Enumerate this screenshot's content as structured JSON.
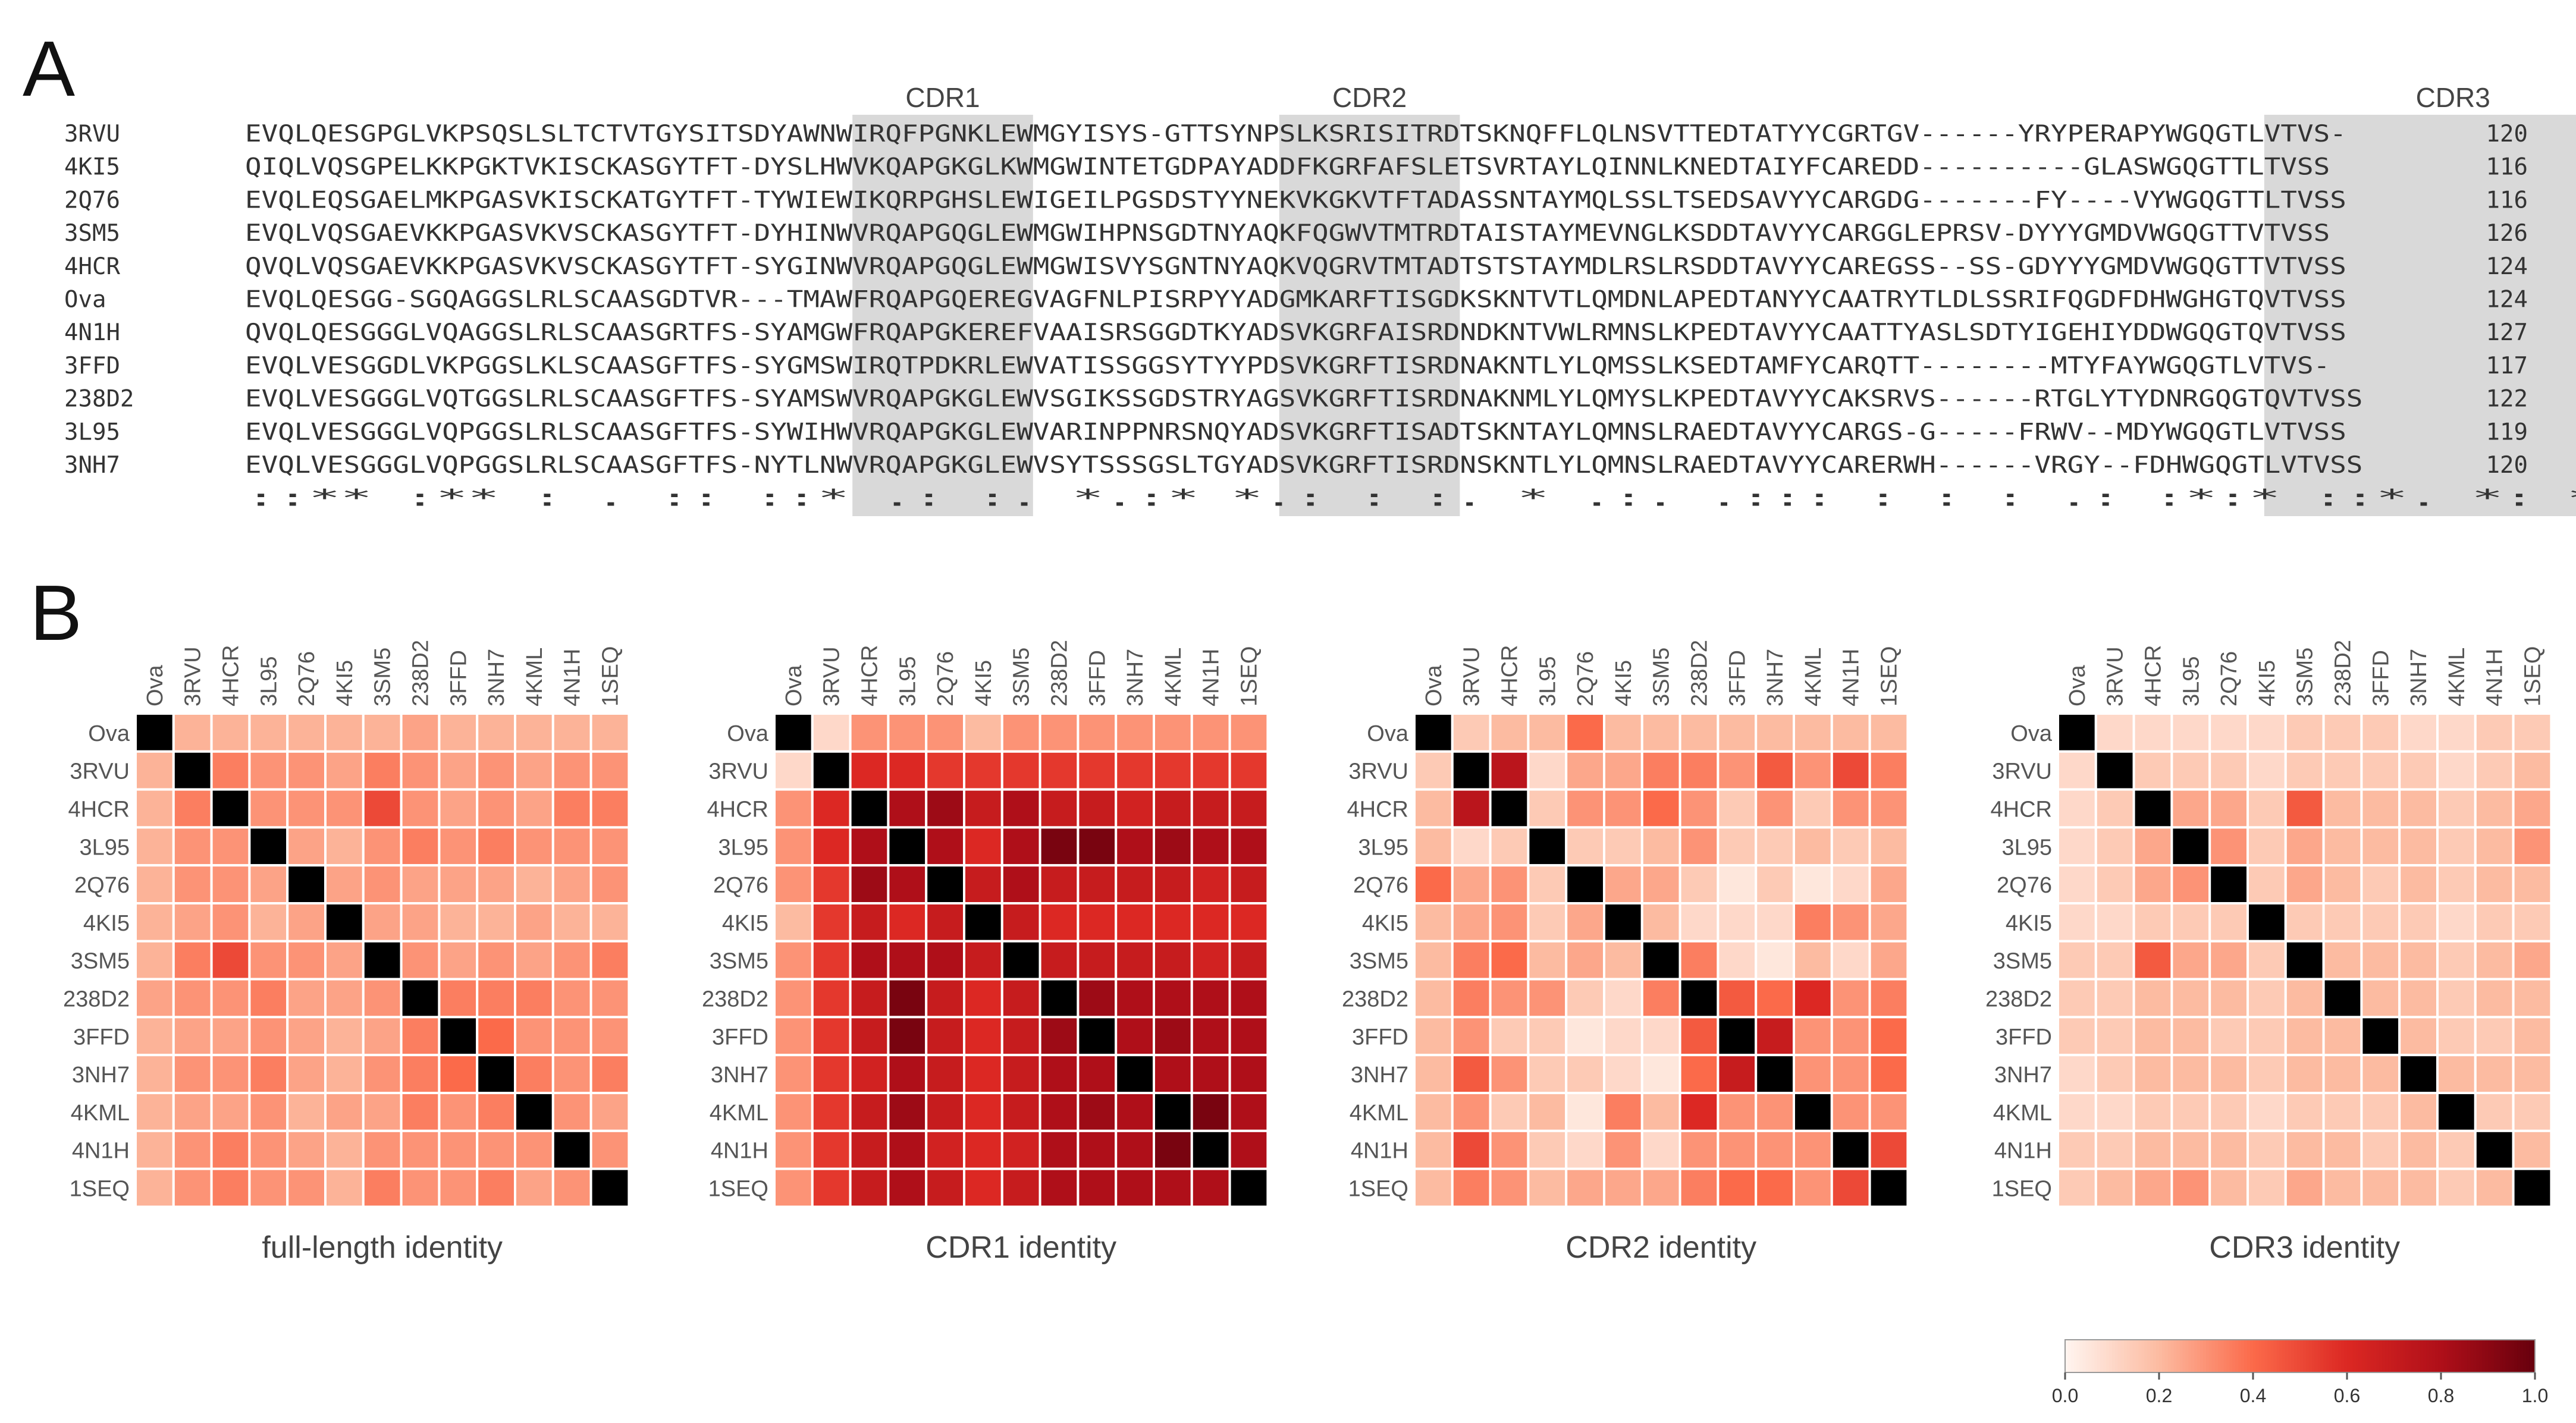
{
  "figure": {
    "panel_a_label": "A",
    "panel_b_label": "B"
  },
  "alignment": {
    "cdr_labels": [
      "CDR1",
      "CDR2",
      "CDR3"
    ],
    "cdr_ranges": [
      [
        37,
        48
      ],
      [
        63,
        74
      ],
      [
        123,
        146
      ]
    ],
    "sequences": [
      {
        "id": "3RVU",
        "seq": "EVQLQESGPGLVKPSQSLSLTCTVTGYSITSDYAWNWIRQFPGNKLEWMGYISYS-GTTSYNPSLKSRISITRDTSKNQFFLQLNSVTTEDTATYYCGRTGV------YRYPERAPYWGQGTLVTVS-",
        "len": "120"
      },
      {
        "id": "4KI5",
        "seq": "QIQLVQSGPELKKPGKTVKISCKASGYTFT-DYSLHWVKQAPGKGLKWMGWINTETGDPAYADDFKGRFAFSLETSVRTAYLQINNLKNEDTAIYFCAREDD----------GLASWGQGTTLTVSS",
        "len": "116"
      },
      {
        "id": "2Q76",
        "seq": "EVQLEQSGAELMKPGASVKISCKATGYTFT-TYWIEWIKQRPGHSLEWIGEILPGSDSTYYNEKVKGKVTFTADASSNTAYMQLSSLTSEDSAVYYCARGDG-------FY----VYWGQGTTLTVSS",
        "len": "116"
      },
      {
        "id": "3SM5",
        "seq": "EVQLVQSGAEVKKPGASVKVSCKASGYTFT-DYHINWVRQAPGQGLEWMGWIHPNSGDTNYAQKFQGWVTMTRDTAISTAYMEVNGLKSDDTAVYYCARGGLEPRSV-DYYYGMDVWGQGTTVTVSS",
        "len": "126"
      },
      {
        "id": "4HCR",
        "seq": "QVQLVQSGAEVKKPGASVKVSCKASGYTFT-SYGINWVRQAPGQGLEWMGWISVYSGNTNYAQKVQGRVTMTADTSTSTAYMDLRSLRSDDTAVYYCAREGSS--SS-GDYYYGMDVWGQGTTVTVSS",
        "len": "124"
      },
      {
        "id": "Ova",
        "seq": "EVQLQESGG-SGQAGGSLRLSCAASGDTVR---TMAWFRQAPGQEREGVAGFNLPISRPYYADGMKARFTISGDKSKNTVTLQMDNLAPEDTANYYCAATRYTLDLSSRIFQGDFDHWGHGTQVTVSS",
        "len": "124"
      },
      {
        "id": "4N1H",
        "seq": "QVQLQESGGGLVQAGGSLRLSCAASGRTFS-SYAMGWFRQAPGKEREFVAAISRSGGDTKYADSVKGRFAISRDNDKNTVWLRMNSLKPEDTAVYYCAATTYASLSDTYIGEHIYDDWGQGTQVTVSS",
        "len": "127"
      },
      {
        "id": "3FFD",
        "seq": "EVQLVESGGDLVKPGGSLKLSCAASGFTFS-SYGMSWIRQTPDKRLEWVATISSGGSYTYYPDSVKGRFTISRDNAKNTLYLQMSSLKSEDTAMFYCARQTT--------MTYFAYWGQGTLVTVS-",
        "len": "117"
      },
      {
        "id": "238D2",
        "seq": "EVQLVESGGGLVQTGGSLRLSCAASGFTFS-SYAMSWVRQAPGKGLEWVSGIKSSGDSTRYAGSVKGRFTISRDNAKNMLYLQMYSLKPEDTAVYYCAKSRVS------RTGLYTYDNRGQGTQVTVSS",
        "len": "122"
      },
      {
        "id": "3L95",
        "seq": "EVQLVESGGGLVQPGGSLRLSCAASGFTFS-SYWIHWVRQAPGKGLEWVARINPPNRSNQYADSVKGRFTISADTSKNTAYLQMNSLRAEDTAVYYCARGS-G-----FRWV--MDYWGQGTLVTVSS",
        "len": "119"
      },
      {
        "id": "3NH7",
        "seq": "EVQLVESGGGLVQPGGSLRLSCAASGFTFS-NYTLNWVRQAPGKGLEWVSYTSSSGSLTGYADSVKGRFTISRDNSKNTLYLQMNSLRAEDTAVYYCARERWH------VRGY--FDHWGQGTLVTVSS",
        "len": "120"
      }
    ],
    "consensus": "::** :**       :  .  :: ::*  .:  :.            *.:*  *.:   :  :.            *    .:.  .::: :        : : .:    :*:*  ::*.                       *:  **  :***"
  },
  "heatmaps": {
    "labels": [
      "Ova",
      "3RVU",
      "4HCR",
      "3L95",
      "2Q76",
      "4KI5",
      "3SM5",
      "238D2",
      "3FFD",
      "3NH7",
      "4KML",
      "4N1H",
      "1SEQ"
    ],
    "panels": [
      {
        "title": "full-length identity",
        "matrix": [
          [
            1.0,
            0.22,
            0.22,
            0.22,
            0.22,
            0.22,
            0.22,
            0.26,
            0.22,
            0.22,
            0.22,
            0.22,
            0.22
          ],
          [
            0.22,
            1.0,
            0.35,
            0.3,
            0.3,
            0.26,
            0.35,
            0.3,
            0.26,
            0.3,
            0.26,
            0.3,
            0.3
          ],
          [
            0.22,
            0.35,
            1.0,
            0.3,
            0.3,
            0.3,
            0.5,
            0.3,
            0.26,
            0.3,
            0.26,
            0.35,
            0.35
          ],
          [
            0.22,
            0.3,
            0.3,
            1.0,
            0.26,
            0.22,
            0.3,
            0.35,
            0.3,
            0.35,
            0.3,
            0.3,
            0.3
          ],
          [
            0.22,
            0.3,
            0.3,
            0.26,
            1.0,
            0.26,
            0.3,
            0.26,
            0.26,
            0.26,
            0.22,
            0.26,
            0.3
          ],
          [
            0.22,
            0.26,
            0.3,
            0.22,
            0.26,
            1.0,
            0.26,
            0.26,
            0.22,
            0.22,
            0.26,
            0.22,
            0.22
          ],
          [
            0.22,
            0.35,
            0.5,
            0.3,
            0.3,
            0.26,
            1.0,
            0.3,
            0.26,
            0.3,
            0.26,
            0.3,
            0.35
          ],
          [
            0.26,
            0.3,
            0.3,
            0.35,
            0.26,
            0.26,
            0.3,
            1.0,
            0.35,
            0.35,
            0.35,
            0.3,
            0.3
          ],
          [
            0.22,
            0.26,
            0.26,
            0.3,
            0.26,
            0.22,
            0.26,
            0.35,
            1.0,
            0.4,
            0.3,
            0.3,
            0.3
          ],
          [
            0.22,
            0.3,
            0.3,
            0.35,
            0.26,
            0.22,
            0.3,
            0.35,
            0.4,
            1.0,
            0.35,
            0.3,
            0.35
          ],
          [
            0.22,
            0.26,
            0.26,
            0.3,
            0.22,
            0.26,
            0.26,
            0.35,
            0.3,
            0.35,
            1.0,
            0.3,
            0.26
          ],
          [
            0.22,
            0.3,
            0.35,
            0.3,
            0.26,
            0.22,
            0.3,
            0.3,
            0.3,
            0.3,
            0.3,
            1.0,
            0.3
          ],
          [
            0.22,
            0.3,
            0.35,
            0.3,
            0.3,
            0.22,
            0.35,
            0.3,
            0.3,
            0.35,
            0.26,
            0.3,
            1.0
          ]
        ]
      },
      {
        "title": "CDR1 identity",
        "matrix": [
          [
            1.0,
            0.1,
            0.3,
            0.3,
            0.3,
            0.2,
            0.3,
            0.3,
            0.3,
            0.3,
            0.3,
            0.3,
            0.3
          ],
          [
            0.1,
            1.0,
            0.6,
            0.6,
            0.55,
            0.55,
            0.55,
            0.55,
            0.55,
            0.55,
            0.55,
            0.55,
            0.55
          ],
          [
            0.3,
            0.6,
            1.0,
            0.8,
            0.85,
            0.7,
            0.8,
            0.7,
            0.7,
            0.65,
            0.7,
            0.7,
            0.7
          ],
          [
            0.3,
            0.6,
            0.8,
            1.0,
            0.8,
            0.6,
            0.8,
            0.95,
            0.95,
            0.8,
            0.85,
            0.8,
            0.8
          ],
          [
            0.3,
            0.55,
            0.85,
            0.8,
            1.0,
            0.7,
            0.8,
            0.7,
            0.7,
            0.7,
            0.7,
            0.65,
            0.7
          ],
          [
            0.2,
            0.55,
            0.7,
            0.6,
            0.7,
            1.0,
            0.7,
            0.6,
            0.6,
            0.6,
            0.6,
            0.6,
            0.6
          ],
          [
            0.3,
            0.55,
            0.8,
            0.8,
            0.8,
            0.7,
            1.0,
            0.7,
            0.7,
            0.7,
            0.7,
            0.65,
            0.7
          ],
          [
            0.3,
            0.55,
            0.7,
            0.95,
            0.7,
            0.6,
            0.7,
            1.0,
            0.85,
            0.8,
            0.8,
            0.8,
            0.8
          ],
          [
            0.3,
            0.55,
            0.7,
            0.95,
            0.7,
            0.6,
            0.7,
            0.85,
            1.0,
            0.8,
            0.85,
            0.8,
            0.8
          ],
          [
            0.3,
            0.55,
            0.65,
            0.8,
            0.7,
            0.6,
            0.7,
            0.8,
            0.8,
            1.0,
            0.8,
            0.8,
            0.8
          ],
          [
            0.3,
            0.55,
            0.7,
            0.85,
            0.7,
            0.6,
            0.7,
            0.8,
            0.85,
            0.8,
            1.0,
            0.95,
            0.8
          ],
          [
            0.3,
            0.55,
            0.7,
            0.8,
            0.65,
            0.6,
            0.65,
            0.8,
            0.8,
            0.8,
            0.95,
            1.0,
            0.8
          ],
          [
            0.3,
            0.55,
            0.7,
            0.8,
            0.7,
            0.6,
            0.7,
            0.8,
            0.8,
            0.8,
            0.8,
            0.8,
            1.0
          ]
        ]
      },
      {
        "title": "CDR2 identity",
        "matrix": [
          [
            1.0,
            0.15,
            0.2,
            0.2,
            0.4,
            0.2,
            0.2,
            0.2,
            0.2,
            0.2,
            0.2,
            0.2,
            0.2
          ],
          [
            0.15,
            1.0,
            0.75,
            0.1,
            0.25,
            0.25,
            0.35,
            0.35,
            0.3,
            0.45,
            0.3,
            0.5,
            0.35
          ],
          [
            0.2,
            0.75,
            1.0,
            0.15,
            0.3,
            0.3,
            0.4,
            0.3,
            0.15,
            0.3,
            0.15,
            0.3,
            0.3
          ],
          [
            0.2,
            0.1,
            0.15,
            1.0,
            0.15,
            0.15,
            0.2,
            0.3,
            0.15,
            0.15,
            0.2,
            0.15,
            0.2
          ],
          [
            0.4,
            0.25,
            0.3,
            0.15,
            1.0,
            0.25,
            0.25,
            0.15,
            0.05,
            0.15,
            0.05,
            0.1,
            0.25
          ],
          [
            0.2,
            0.25,
            0.3,
            0.15,
            0.25,
            1.0,
            0.2,
            0.1,
            0.1,
            0.1,
            0.35,
            0.3,
            0.25
          ],
          [
            0.2,
            0.35,
            0.4,
            0.2,
            0.25,
            0.2,
            1.0,
            0.35,
            0.1,
            0.05,
            0.2,
            0.1,
            0.25
          ],
          [
            0.2,
            0.35,
            0.3,
            0.3,
            0.15,
            0.1,
            0.35,
            1.0,
            0.45,
            0.4,
            0.6,
            0.3,
            0.35
          ],
          [
            0.2,
            0.3,
            0.15,
            0.15,
            0.05,
            0.1,
            0.1,
            0.45,
            1.0,
            0.7,
            0.3,
            0.3,
            0.4
          ],
          [
            0.2,
            0.45,
            0.3,
            0.15,
            0.15,
            0.1,
            0.05,
            0.4,
            0.7,
            1.0,
            0.3,
            0.3,
            0.4
          ],
          [
            0.2,
            0.3,
            0.15,
            0.2,
            0.05,
            0.35,
            0.2,
            0.6,
            0.3,
            0.3,
            1.0,
            0.3,
            0.3
          ],
          [
            0.2,
            0.5,
            0.3,
            0.15,
            0.1,
            0.3,
            0.1,
            0.3,
            0.3,
            0.3,
            0.3,
            1.0,
            0.5
          ],
          [
            0.2,
            0.35,
            0.3,
            0.2,
            0.25,
            0.25,
            0.25,
            0.35,
            0.4,
            0.4,
            0.3,
            0.5,
            1.0
          ]
        ]
      },
      {
        "title": "CDR3 identity",
        "matrix": [
          [
            1.0,
            0.1,
            0.1,
            0.1,
            0.1,
            0.1,
            0.15,
            0.15,
            0.15,
            0.1,
            0.1,
            0.15,
            0.15
          ],
          [
            0.1,
            1.0,
            0.15,
            0.15,
            0.15,
            0.1,
            0.15,
            0.15,
            0.15,
            0.15,
            0.1,
            0.15,
            0.2
          ],
          [
            0.1,
            0.15,
            1.0,
            0.25,
            0.25,
            0.15,
            0.45,
            0.2,
            0.2,
            0.2,
            0.15,
            0.2,
            0.25
          ],
          [
            0.1,
            0.15,
            0.25,
            1.0,
            0.3,
            0.15,
            0.25,
            0.2,
            0.2,
            0.2,
            0.15,
            0.2,
            0.3
          ],
          [
            0.1,
            0.15,
            0.25,
            0.3,
            1.0,
            0.15,
            0.25,
            0.2,
            0.15,
            0.2,
            0.15,
            0.2,
            0.2
          ],
          [
            0.1,
            0.1,
            0.15,
            0.15,
            0.15,
            1.0,
            0.15,
            0.15,
            0.15,
            0.15,
            0.1,
            0.15,
            0.15
          ],
          [
            0.15,
            0.15,
            0.45,
            0.25,
            0.25,
            0.15,
            1.0,
            0.2,
            0.2,
            0.2,
            0.15,
            0.2,
            0.25
          ],
          [
            0.15,
            0.15,
            0.2,
            0.2,
            0.2,
            0.15,
            0.2,
            1.0,
            0.2,
            0.2,
            0.15,
            0.2,
            0.2
          ],
          [
            0.15,
            0.15,
            0.2,
            0.2,
            0.15,
            0.15,
            0.2,
            0.2,
            1.0,
            0.2,
            0.15,
            0.15,
            0.2
          ],
          [
            0.1,
            0.15,
            0.2,
            0.2,
            0.2,
            0.15,
            0.2,
            0.2,
            0.2,
            1.0,
            0.2,
            0.2,
            0.2
          ],
          [
            0.1,
            0.1,
            0.15,
            0.15,
            0.15,
            0.1,
            0.15,
            0.15,
            0.15,
            0.2,
            1.0,
            0.15,
            0.15
          ],
          [
            0.15,
            0.15,
            0.2,
            0.2,
            0.2,
            0.15,
            0.2,
            0.2,
            0.15,
            0.2,
            0.15,
            1.0,
            0.2
          ],
          [
            0.15,
            0.2,
            0.25,
            0.3,
            0.2,
            0.15,
            0.25,
            0.2,
            0.2,
            0.2,
            0.15,
            0.2,
            1.0
          ]
        ]
      }
    ]
  },
  "chart_data": {
    "type": "heatmap",
    "colorbar": {
      "range": [
        0.0,
        1.0
      ],
      "ticks": [
        "0.0",
        "0.2",
        "0.4",
        "0.6",
        "0.8",
        "1.0"
      ],
      "colors": [
        "#fff5f0",
        "#fcbba1",
        "#fb6a4a",
        "#cb181d",
        "#67000d"
      ]
    },
    "diagonal_color": "#000000"
  }
}
